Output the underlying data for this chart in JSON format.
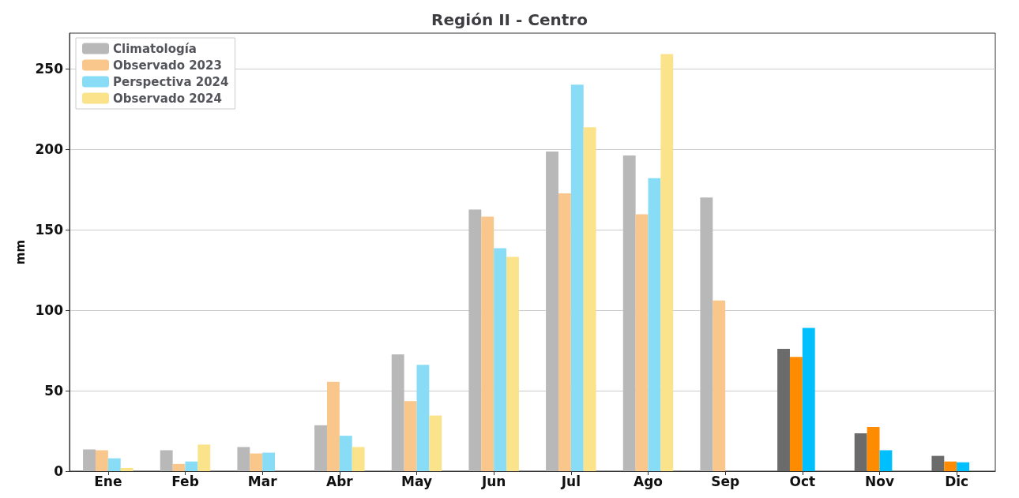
{
  "chart_data": {
    "type": "bar",
    "title": "Región II - Centro",
    "ylabel": "mm",
    "categories": [
      "Ene",
      "Feb",
      "Mar",
      "Abr",
      "May",
      "Jun",
      "Jul",
      "Ago",
      "Sep",
      "Oct",
      "Nov",
      "Dic"
    ],
    "series": [
      {
        "name": "Climatología",
        "color": "#b8b8b8",
        "colors": [
          "#b8b8b8",
          "#b8b8b8",
          "#b8b8b8",
          "#b8b8b8",
          "#b8b8b8",
          "#b8b8b8",
          "#b8b8b8",
          "#b8b8b8",
          "#b8b8b8",
          "#6b6b6b",
          "#6b6b6b",
          "#6b6b6b"
        ],
        "values": [
          13.5,
          13,
          15,
          28.5,
          72.5,
          162.5,
          198.5,
          196,
          170,
          76,
          23.5,
          9.5
        ]
      },
      {
        "name": "Observado 2023",
        "color": "#f9c68c",
        "colors": [
          "#f9c68c",
          "#f9c68c",
          "#f9c68c",
          "#f9c68c",
          "#f9c68c",
          "#f9c68c",
          "#f9c68c",
          "#f9c68c",
          "#f9c68c",
          "#ff8c00",
          "#ff8c00",
          "#ff8c00"
        ],
        "values": [
          13,
          4.5,
          11,
          55.5,
          43.5,
          158,
          172.5,
          159.5,
          106,
          71,
          27.5,
          6
        ]
      },
      {
        "name": "Perspectiva 2024",
        "color": "#88dcf5",
        "colors": [
          "#88dcf5",
          "#88dcf5",
          "#88dcf5",
          "#88dcf5",
          "#88dcf5",
          "#88dcf5",
          "#88dcf5",
          "#88dcf5",
          "#88dcf5",
          "#00bfff",
          "#00bfff",
          "#00bfff"
        ],
        "values": [
          8,
          6,
          11.5,
          22,
          66,
          138.5,
          240,
          182,
          null,
          89,
          13,
          5.5
        ]
      },
      {
        "name": "Observado 2024",
        "color": "#fae38a",
        "colors": [
          "#fae38a",
          "#fae38a",
          "#fae38a",
          "#fae38a",
          "#fae38a",
          "#fae38a",
          "#fae38a",
          "#fae38a",
          "#fae38a",
          "#fae38a",
          "#fae38a",
          "#fae38a"
        ],
        "values": [
          2,
          16.5,
          null,
          15,
          34.5,
          133,
          213.5,
          259,
          null,
          null,
          null,
          null
        ]
      }
    ],
    "ylim": [
      0,
      272
    ],
    "yticks": [
      0,
      50,
      100,
      150,
      200,
      250
    ],
    "grid": "y",
    "legend": "top left"
  }
}
